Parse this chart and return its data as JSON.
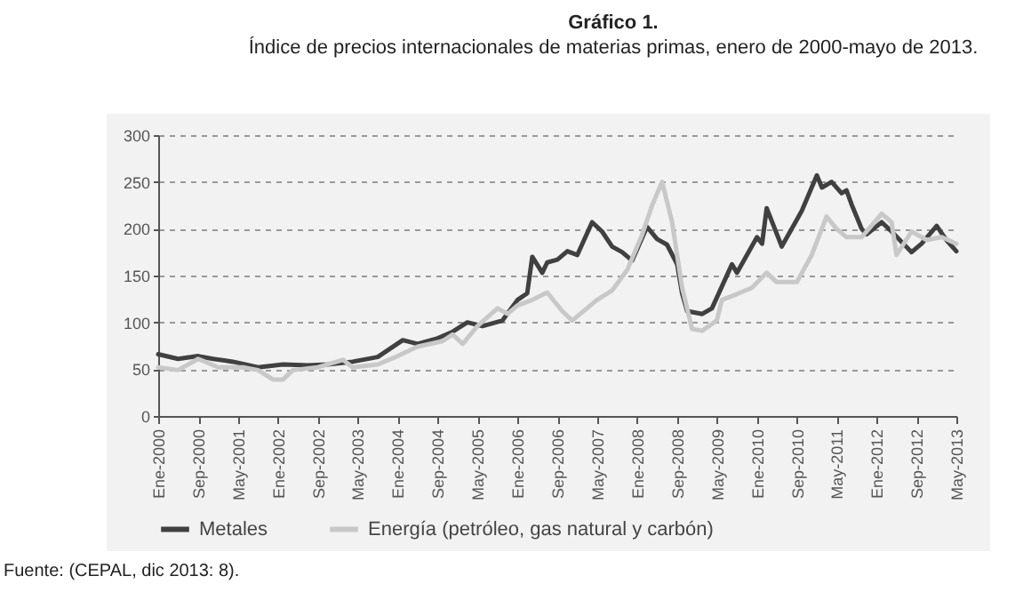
{
  "chart_data": {
    "type": "line",
    "title": "Gráfico 1.",
    "subtitle": "Índice de precios internacionales de materias primas, enero de 2000-mayo de 2013.",
    "annotations": [
      "Fuente: (CEPAL, dic 2013: 8)."
    ],
    "xlim": [
      "2000-01",
      "2013-05"
    ],
    "xticks": [
      {
        "value": "2000-01",
        "label": "Ene-2000"
      },
      {
        "value": "2000-09",
        "label": "Sep-2000"
      },
      {
        "value": "2001-05",
        "label": "May-2001"
      },
      {
        "value": "2002-01",
        "label": "Ene-2002"
      },
      {
        "value": "2002-09",
        "label": "Sep-2002"
      },
      {
        "value": "2003-05",
        "label": "May-2003"
      },
      {
        "value": "2004-01",
        "label": "Ene-2004"
      },
      {
        "value": "2004-09",
        "label": "Sep-2004"
      },
      {
        "value": "2005-05",
        "label": "May-2005"
      },
      {
        "value": "2006-01",
        "label": "Ene-2006"
      },
      {
        "value": "2006-09",
        "label": "Sep-2006"
      },
      {
        "value": "2007-05",
        "label": "May-2007"
      },
      {
        "value": "2008-01",
        "label": "Ene-2008"
      },
      {
        "value": "2008-09",
        "label": "Sep-2008"
      },
      {
        "value": "2009-05",
        "label": "May-2009"
      },
      {
        "value": "2010-01",
        "label": "Ene-2010"
      },
      {
        "value": "2010-09",
        "label": "Sep-2010"
      },
      {
        "value": "2011-05",
        "label": "May-2011"
      },
      {
        "value": "2012-01",
        "label": "Ene-2012"
      },
      {
        "value": "2012-09",
        "label": "Sep-2012"
      },
      {
        "value": "2013-05",
        "label": "May-2013"
      }
    ],
    "ylim": [
      0,
      300
    ],
    "yticks": [
      0,
      50,
      100,
      150,
      200,
      250,
      300
    ],
    "grid": "y",
    "legend": "bottom",
    "marker": "none",
    "line_style": "solid",
    "series": [
      {
        "name": "Metales",
        "color": "#404040",
        "x": [
          "2000-01",
          "2000-05",
          "2000-09",
          "2000-12",
          "2001-04",
          "2001-09",
          "2002-02",
          "2002-07",
          "2002-11",
          "2003-04",
          "2003-09",
          "2004-02",
          "2004-05",
          "2004-09",
          "2004-12",
          "2005-03",
          "2005-06",
          "2005-10",
          "2006-01",
          "2006-03",
          "2006-04",
          "2006-06",
          "2006-07",
          "2006-09",
          "2006-11",
          "2007-01",
          "2007-04",
          "2007-06",
          "2007-08",
          "2007-10",
          "2007-12",
          "2008-03",
          "2008-05",
          "2008-07",
          "2008-09",
          "2008-10",
          "2008-11",
          "2009-02",
          "2009-04",
          "2009-08",
          "2009-09",
          "2010-01",
          "2010-02",
          "2010-03",
          "2010-06",
          "2010-08",
          "2010-10",
          "2011-01",
          "2011-02",
          "2011-04",
          "2011-06",
          "2011-07",
          "2011-08",
          "2011-10",
          "2011-11",
          "2012-02",
          "2012-04",
          "2012-08",
          "2012-10",
          "2013-01",
          "2013-03",
          "2013-05"
        ],
        "values": [
          66,
          61,
          64,
          61,
          58,
          52,
          55,
          54,
          55,
          58,
          63,
          81,
          77,
          83,
          90,
          100,
          96,
          102,
          124,
          131,
          170,
          153,
          164,
          167,
          176,
          172,
          207,
          197,
          181,
          175,
          166,
          202,
          189,
          183,
          162,
          131,
          112,
          109,
          115,
          162,
          153,
          191,
          184,
          222,
          181,
          200,
          219,
          257,
          244,
          250,
          238,
          241,
          226,
          200,
          194,
          207,
          197,
          175,
          184,
          203,
          188,
          176
        ]
      },
      {
        "name": "Energía (petróleo, gas natural y carbón)",
        "color": "#c8c8c8",
        "x": [
          "2000-01",
          "2000-05",
          "2000-09",
          "2001-01",
          "2001-06",
          "2001-09",
          "2001-12",
          "2002-02",
          "2002-04",
          "2002-09",
          "2003-02",
          "2003-04",
          "2003-09",
          "2004-01",
          "2004-05",
          "2004-10",
          "2004-12",
          "2005-02",
          "2005-05",
          "2005-09",
          "2005-11",
          "2006-01",
          "2006-04",
          "2006-07",
          "2006-10",
          "2006-12",
          "2007-05",
          "2007-08",
          "2007-11",
          "2008-02",
          "2008-04",
          "2008-06",
          "2008-08",
          "2008-10",
          "2008-12",
          "2009-02",
          "2009-05",
          "2009-06",
          "2009-08",
          "2009-12",
          "2010-03",
          "2010-05",
          "2010-09",
          "2010-12",
          "2011-03",
          "2011-05",
          "2011-07",
          "2011-10",
          "2012-02",
          "2012-04",
          "2012-05",
          "2012-08",
          "2012-11",
          "2013-02",
          "2013-05"
        ],
        "values": [
          52,
          49,
          61,
          52,
          52,
          49,
          39,
          39,
          49,
          52,
          60,
          52,
          55,
          64,
          74,
          80,
          87,
          77,
          96,
          115,
          109,
          118,
          124,
          132,
          112,
          102,
          124,
          134,
          156,
          194,
          225,
          250,
          207,
          137,
          93,
          91,
          102,
          124,
          128,
          137,
          153,
          143,
          143,
          172,
          213,
          200,
          191,
          191,
          216,
          207,
          172,
          197,
          188,
          191,
          184
        ]
      }
    ]
  }
}
